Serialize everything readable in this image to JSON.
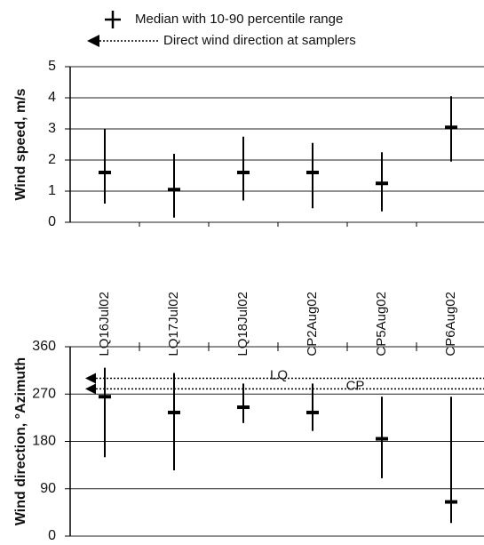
{
  "legend": {
    "median": "Median with 10-90 percentile range",
    "direct": "Direct wind direction at samplers"
  },
  "chart_data": [
    {
      "type": "errorbar",
      "ylabel": "Wind speed, m/s",
      "categories": [
        "LQ16Jul02",
        "LQ17Jul02",
        "LQ18Jul02",
        "CP2Aug02",
        "CP5Aug02",
        "CP6Aug02"
      ],
      "values": [
        1.6,
        1.05,
        1.6,
        1.6,
        1.25,
        3.05
      ],
      "lows": [
        0.6,
        0.15,
        0.7,
        0.45,
        0.35,
        1.95
      ],
      "highs": [
        3.0,
        2.2,
        2.75,
        2.55,
        2.25,
        4.05
      ],
      "color": "#000000",
      "ylim": [
        0,
        5
      ],
      "yticks": [
        0,
        1,
        2,
        3,
        4,
        5
      ],
      "grid": true
    },
    {
      "type": "errorbar",
      "ylabel": "Wind direction, °Azimuth",
      "values": [
        265,
        235,
        245,
        235,
        185,
        65
      ],
      "lows": [
        150,
        125,
        215,
        200,
        110,
        25
      ],
      "highs": [
        320,
        310,
        290,
        290,
        265,
        265
      ],
      "color": "#000000",
      "reference_lines": [
        {
          "label": "LQ",
          "value": 300
        },
        {
          "label": "CP",
          "value": 280
        }
      ],
      "ylim": [
        0,
        360
      ],
      "yticks": [
        0,
        90,
        180,
        270,
        360
      ],
      "grid": true
    }
  ]
}
